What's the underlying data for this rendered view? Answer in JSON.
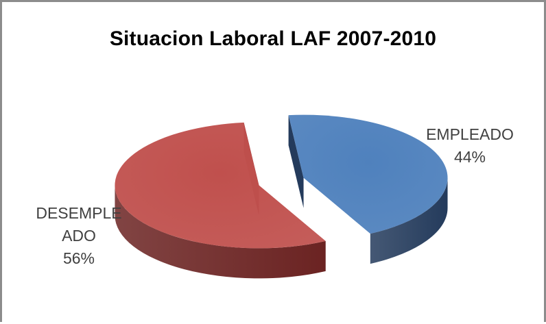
{
  "chart_data": {
    "type": "pie",
    "title": "Situacion Laboral  LAF 2007-2010",
    "slices": [
      {
        "label_lines": [
          "EMPLEADO"
        ],
        "percent_label": "44%",
        "value": 44,
        "color": "#4f81bd",
        "side_color": "#243b5c"
      },
      {
        "label_lines": [
          "DESEMPLE",
          "ADO"
        ],
        "percent_label": "56%",
        "value": 56,
        "color": "#c0504d",
        "side_color": "#6b2322"
      }
    ],
    "exploded": true,
    "three_d": true,
    "legend": "none"
  }
}
